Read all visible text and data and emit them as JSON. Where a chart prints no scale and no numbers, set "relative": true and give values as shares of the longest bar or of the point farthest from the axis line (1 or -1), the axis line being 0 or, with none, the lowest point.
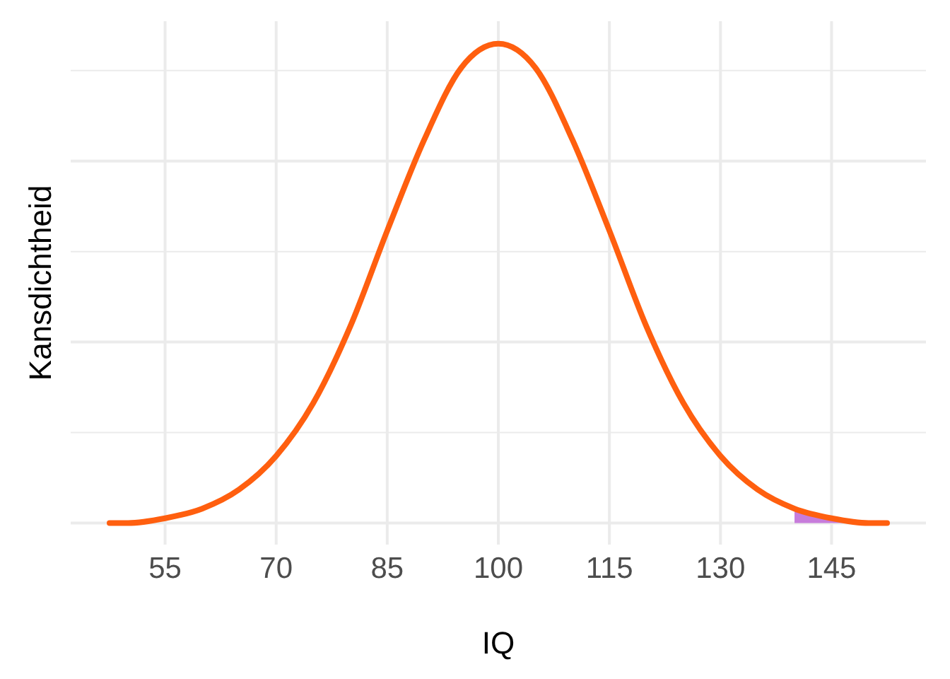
{
  "chart_data": {
    "type": "line",
    "xlabel": "IQ",
    "ylabel": "Kansdichtheid",
    "relative": true,
    "grid": true,
    "xlim": [
      42.25,
      157.75
    ],
    "xticks": [
      55,
      70,
      85,
      100,
      115,
      130,
      145
    ],
    "series": [
      {
        "type": "area",
        "color": "#c77cdb",
        "x": [
          140,
          145,
          150,
          152.5
        ],
        "values": [
          0.03,
          0.01,
          0,
          0
        ]
      },
      {
        "color": "#ff5f0f",
        "x": [
          47.5,
          50,
          55,
          60,
          65,
          70,
          75,
          80,
          85,
          90,
          95,
          100,
          105,
          110,
          115,
          120,
          125,
          130,
          135,
          140,
          145,
          150,
          152.5
        ],
        "values": [
          0,
          0,
          0.01,
          0.03,
          0.07,
          0.14,
          0.25,
          0.41,
          0.61,
          0.8,
          0.95,
          1,
          0.95,
          0.8,
          0.61,
          0.41,
          0.25,
          0.14,
          0.07,
          0.03,
          0.01,
          0,
          0
        ]
      }
    ]
  }
}
